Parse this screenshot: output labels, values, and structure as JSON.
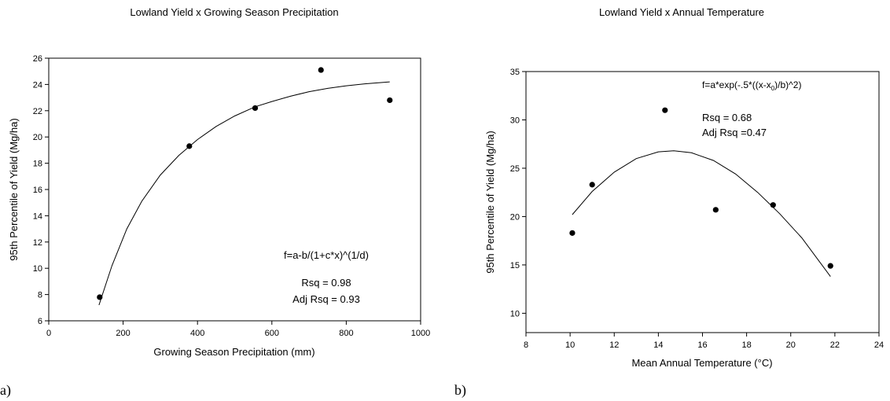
{
  "chart_data": [
    {
      "type": "scatter",
      "panel_label": "a)",
      "title": "Lowland Yield x Growing Season Precipitation",
      "xlabel": "Growing Season Precipitation (mm)",
      "ylabel": "95th Percentile of Yield (Mg/ha)",
      "xlim": [
        0,
        1000
      ],
      "ylim": [
        6,
        26
      ],
      "xticks": [
        0,
        200,
        400,
        600,
        800,
        1000
      ],
      "yticks": [
        6,
        8,
        10,
        12,
        14,
        16,
        18,
        20,
        22,
        24,
        26
      ],
      "points": [
        {
          "x": 137,
          "y": 7.8
        },
        {
          "x": 378,
          "y": 19.3
        },
        {
          "x": 555,
          "y": 22.2
        },
        {
          "x": 732,
          "y": 25.1
        },
        {
          "x": 917,
          "y": 22.8
        }
      ],
      "fit_curve": [
        {
          "x": 135,
          "y": 7.2
        },
        {
          "x": 170,
          "y": 10.2
        },
        {
          "x": 210,
          "y": 13.0
        },
        {
          "x": 250,
          "y": 15.1
        },
        {
          "x": 300,
          "y": 17.1
        },
        {
          "x": 350,
          "y": 18.6
        },
        {
          "x": 400,
          "y": 19.8
        },
        {
          "x": 450,
          "y": 20.8
        },
        {
          "x": 500,
          "y": 21.6
        },
        {
          "x": 555,
          "y": 22.3
        },
        {
          "x": 600,
          "y": 22.7
        },
        {
          "x": 650,
          "y": 23.1
        },
        {
          "x": 700,
          "y": 23.45
        },
        {
          "x": 750,
          "y": 23.7
        },
        {
          "x": 800,
          "y": 23.9
        },
        {
          "x": 850,
          "y": 24.05
        },
        {
          "x": 917,
          "y": 24.2
        }
      ],
      "annotations": {
        "equation": "f=a-b/(1+c*x)^(1/d)",
        "rsq": "Rsq = 0.98",
        "adj_rsq": "Adj Rsq = 0.93"
      },
      "grid": false,
      "marker_color": "#000000"
    },
    {
      "type": "scatter",
      "panel_label": "b)",
      "title": "Lowland Yield x Annual Temperature",
      "xlabel": "Mean Annual Temperature (°C)",
      "ylabel": "95th Percentile of Yield (Mg/ha)",
      "xlim": [
        8,
        24
      ],
      "ylim": [
        8,
        35
      ],
      "xticks": [
        8,
        10,
        12,
        14,
        16,
        18,
        20,
        22,
        24
      ],
      "yticks": [
        10,
        15,
        20,
        25,
        30,
        35
      ],
      "points": [
        {
          "x": 10.1,
          "y": 18.3
        },
        {
          "x": 11.0,
          "y": 23.3
        },
        {
          "x": 14.3,
          "y": 31.0
        },
        {
          "x": 16.6,
          "y": 20.7
        },
        {
          "x": 19.2,
          "y": 21.2
        },
        {
          "x": 21.8,
          "y": 14.9
        }
      ],
      "fit_curve": [
        {
          "x": 10.1,
          "y": 20.2
        },
        {
          "x": 11.0,
          "y": 22.6
        },
        {
          "x": 12.0,
          "y": 24.6
        },
        {
          "x": 13.0,
          "y": 26.0
        },
        {
          "x": 14.0,
          "y": 26.7
        },
        {
          "x": 14.7,
          "y": 26.8
        },
        {
          "x": 15.5,
          "y": 26.6
        },
        {
          "x": 16.5,
          "y": 25.8
        },
        {
          "x": 17.5,
          "y": 24.4
        },
        {
          "x": 18.5,
          "y": 22.5
        },
        {
          "x": 19.5,
          "y": 20.3
        },
        {
          "x": 20.5,
          "y": 17.8
        },
        {
          "x": 21.8,
          "y": 13.8
        }
      ],
      "annotations": {
        "equation_pre": "f=a*exp(-.5*((x-x",
        "equation_sub": "0",
        "equation_post": ")/b)^2)",
        "rsq": "Rsq = 0.68",
        "adj_rsq": "Adj Rsq =0.47"
      },
      "grid": false,
      "marker_color": "#000000"
    }
  ]
}
